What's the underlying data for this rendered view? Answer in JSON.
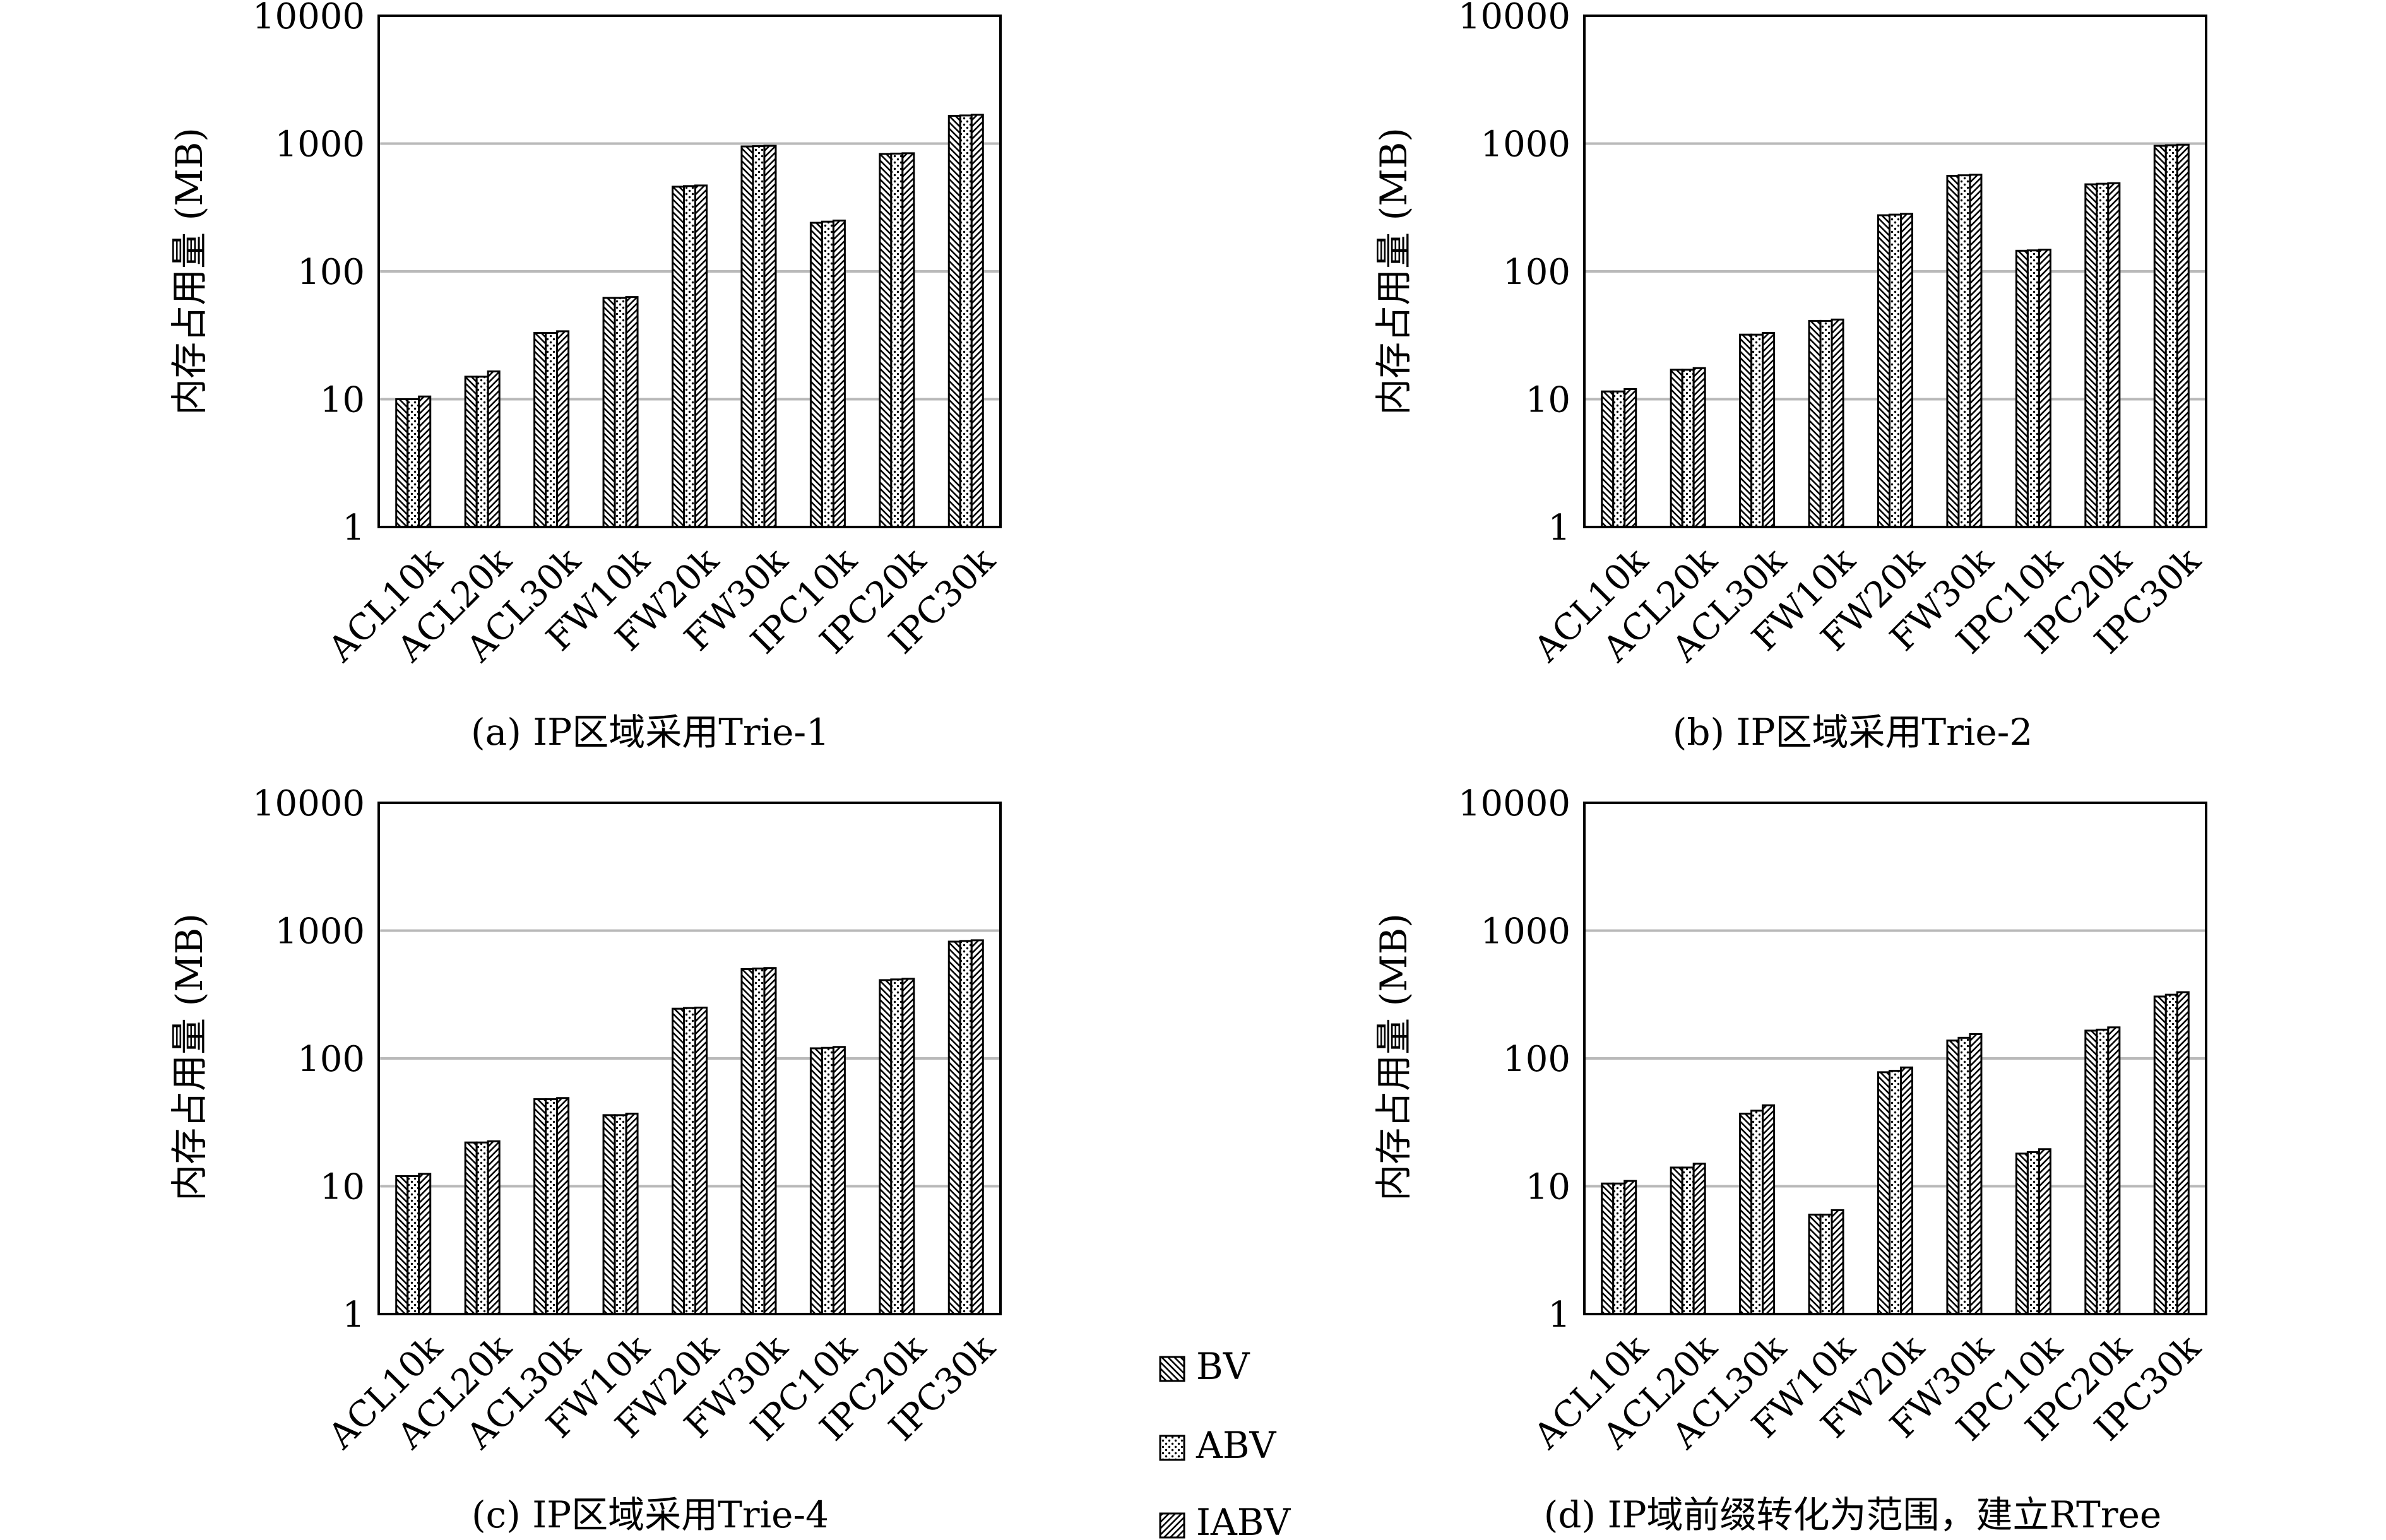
{
  "categories": [
    "ACL10k",
    "ACL20k",
    "ACL30k",
    "FW10k",
    "FW20k",
    "FW30k",
    "IPC10k",
    "IPC20k",
    "IPC30k"
  ],
  "series_names": [
    "BV",
    "ABV",
    "IABV"
  ],
  "legend": [
    {
      "label": "BV",
      "pattern": "bv"
    },
    {
      "label": "ABV",
      "pattern": "abv"
    },
    {
      "label": "IABV",
      "pattern": "iabv"
    }
  ],
  "chart_data": [
    {
      "type": "bar",
      "caption": "(a) IP区域采用Trie-1",
      "ylabel": "内存占用量 (MB)",
      "yscale": "log",
      "ylim": [
        1,
        10000
      ],
      "yticks": [
        "1",
        "10",
        "100",
        "1000",
        "10000"
      ],
      "grid": true,
      "categories": [
        "ACL10k",
        "ACL20k",
        "ACL30k",
        "FW10k",
        "FW20k",
        "FW30k",
        "IPC10k",
        "IPC20k",
        "IPC30k"
      ],
      "series": [
        {
          "name": "BV",
          "values": [
            10,
            15,
            33,
            62,
            460,
            950,
            240,
            830,
            1650
          ]
        },
        {
          "name": "ABV",
          "values": [
            10,
            15,
            33,
            62,
            465,
            955,
            245,
            835,
            1660
          ]
        },
        {
          "name": "IABV",
          "values": [
            10.5,
            16.5,
            34,
            63,
            470,
            960,
            250,
            840,
            1680
          ]
        }
      ]
    },
    {
      "type": "bar",
      "caption": "(b) IP区域采用Trie-2",
      "ylabel": "内存占用量 (MB)",
      "yscale": "log",
      "ylim": [
        1,
        10000
      ],
      "yticks": [
        "1",
        "10",
        "100",
        "1000",
        "10000"
      ],
      "grid": true,
      "categories": [
        "ACL10k",
        "ACL20k",
        "ACL30k",
        "FW10k",
        "FW20k",
        "FW30k",
        "IPC10k",
        "IPC20k",
        "IPC30k"
      ],
      "series": [
        {
          "name": "BV",
          "values": [
            11.5,
            17,
            32,
            41,
            275,
            560,
            145,
            480,
            960
          ]
        },
        {
          "name": "ABV",
          "values": [
            11.5,
            17,
            32,
            41,
            278,
            565,
            146,
            485,
            970
          ]
        },
        {
          "name": "IABV",
          "values": [
            12,
            17.5,
            33,
            42,
            282,
            570,
            148,
            490,
            980
          ]
        }
      ]
    },
    {
      "type": "bar",
      "caption": "(c) IP区域采用Trie-4",
      "ylabel": "内存占用量 (MB)",
      "yscale": "log",
      "ylim": [
        1,
        10000
      ],
      "yticks": [
        "1",
        "10",
        "100",
        "1000",
        "10000"
      ],
      "grid": true,
      "categories": [
        "ACL10k",
        "ACL20k",
        "ACL30k",
        "FW10k",
        "FW20k",
        "FW30k",
        "IPC10k",
        "IPC20k",
        "IPC30k"
      ],
      "series": [
        {
          "name": "BV",
          "values": [
            12,
            22,
            48,
            36,
            245,
            500,
            120,
            410,
            820
          ]
        },
        {
          "name": "ABV",
          "values": [
            12,
            22,
            48,
            36,
            248,
            505,
            121,
            415,
            830
          ]
        },
        {
          "name": "IABV",
          "values": [
            12.5,
            22.5,
            49,
            37,
            250,
            510,
            123,
            420,
            840
          ]
        }
      ]
    },
    {
      "type": "bar",
      "caption": "(d) IP域前缀转化为范围，建立RTree",
      "ylabel": "内存占用量 (MB)",
      "yscale": "log",
      "ylim": [
        1,
        10000
      ],
      "yticks": [
        "1",
        "10",
        "100",
        "1000",
        "10000"
      ],
      "grid": true,
      "categories": [
        "ACL10k",
        "ACL20k",
        "ACL30k",
        "FW10k",
        "FW20k",
        "FW30k",
        "IPC10k",
        "IPC20k",
        "IPC30k"
      ],
      "series": [
        {
          "name": "BV",
          "values": [
            10.5,
            14,
            37,
            6,
            78,
            138,
            18,
            165,
            305
          ]
        },
        {
          "name": "ABV",
          "values": [
            10.5,
            14,
            39,
            6,
            80,
            145,
            18.5,
            168,
            315
          ]
        },
        {
          "name": "IABV",
          "values": [
            11,
            15,
            43,
            6.5,
            85,
            155,
            19.5,
            175,
            330
          ]
        }
      ]
    }
  ]
}
